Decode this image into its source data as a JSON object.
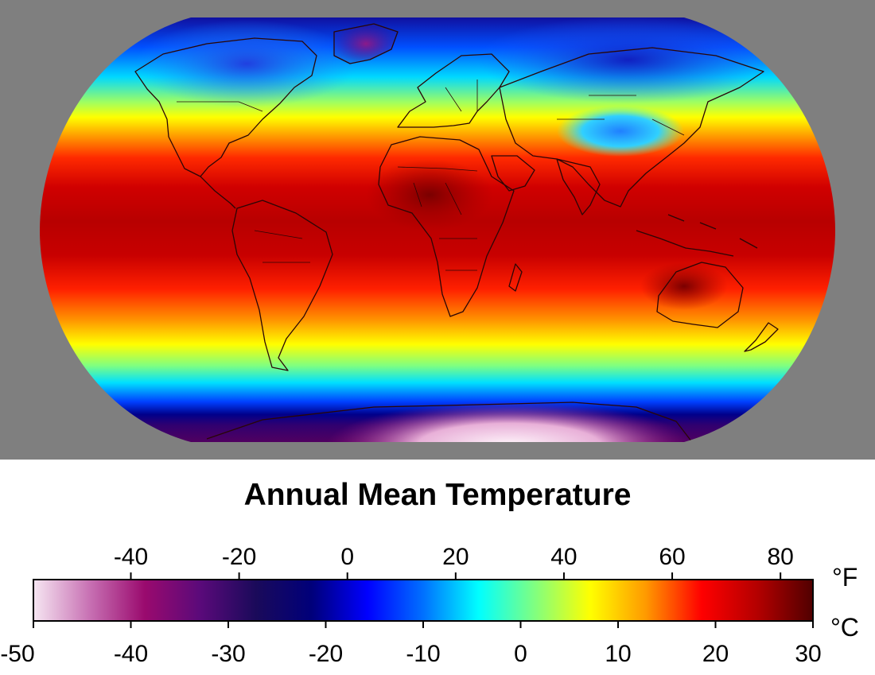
{
  "title": "Annual Mean Temperature",
  "colors": {
    "background_panel": "#7f7f7f",
    "land_outline": "#2a0606",
    "scale_stops": [
      "#f6e6f2",
      "#c872b4",
      "#9a0a6e",
      "#5a0a7a",
      "#1a0a5a",
      "#00007a",
      "#0000ff",
      "#0070ff",
      "#00ffff",
      "#80ff80",
      "#ffff00",
      "#ff9900",
      "#ff0000",
      "#b40000",
      "#500000"
    ]
  },
  "legend": {
    "fahrenheit_unit": "°F",
    "celsius_unit": "°C",
    "fahrenheit_ticks": [
      {
        "value": -40,
        "label": "-40"
      },
      {
        "value": -20,
        "label": "-20"
      },
      {
        "value": 0,
        "label": "0"
      },
      {
        "value": 20,
        "label": "20"
      },
      {
        "value": 40,
        "label": "40"
      },
      {
        "value": 60,
        "label": "60"
      },
      {
        "value": 80,
        "label": "80"
      }
    ],
    "celsius_ticks": [
      {
        "value": -50,
        "label": "-50"
      },
      {
        "value": -40,
        "label": "-40"
      },
      {
        "value": -30,
        "label": "-30"
      },
      {
        "value": -20,
        "label": "-20"
      },
      {
        "value": -10,
        "label": "-10"
      },
      {
        "value": 0,
        "label": "0"
      },
      {
        "value": 10,
        "label": "10"
      },
      {
        "value": 20,
        "label": "20"
      },
      {
        "value": 30,
        "label": "30"
      }
    ],
    "celsius_range": [
      -50,
      30
    ]
  }
}
